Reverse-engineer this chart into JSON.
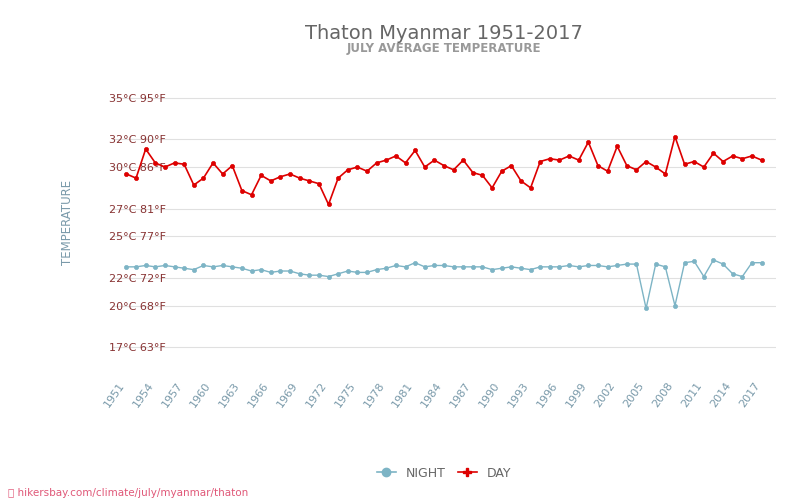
{
  "title": "Thaton Myanmar 1951-2017",
  "subtitle": "JULY AVERAGE TEMPERATURE",
  "ylabel": "TEMPERATURE",
  "xlabel_url": "hikersbay.com/climate/july/myanmar/thaton",
  "years": [
    1951,
    1952,
    1953,
    1954,
    1955,
    1956,
    1957,
    1958,
    1959,
    1960,
    1961,
    1962,
    1963,
    1964,
    1965,
    1966,
    1967,
    1968,
    1969,
    1970,
    1971,
    1972,
    1973,
    1974,
    1975,
    1976,
    1977,
    1978,
    1979,
    1980,
    1981,
    1982,
    1983,
    1984,
    1985,
    1986,
    1987,
    1988,
    1989,
    1990,
    1991,
    1992,
    1993,
    1994,
    1995,
    1996,
    1997,
    1998,
    1999,
    2000,
    2001,
    2002,
    2003,
    2004,
    2005,
    2006,
    2007,
    2008,
    2009,
    2010,
    2011,
    2012,
    2013,
    2014,
    2015,
    2016,
    2017
  ],
  "day_temps": [
    29.5,
    29.2,
    31.3,
    30.3,
    30.0,
    30.3,
    30.2,
    28.7,
    29.2,
    30.3,
    29.5,
    30.1,
    28.3,
    28.0,
    29.4,
    29.0,
    29.3,
    29.5,
    29.2,
    29.0,
    28.8,
    27.3,
    29.2,
    29.8,
    30.0,
    29.7,
    30.3,
    30.5,
    30.8,
    30.3,
    31.2,
    30.0,
    30.5,
    30.1,
    29.8,
    30.5,
    29.6,
    29.4,
    28.5,
    29.7,
    30.1,
    29.0,
    28.5,
    30.4,
    30.6,
    30.5,
    30.8,
    30.5,
    31.8,
    30.1,
    29.7,
    31.5,
    30.1,
    29.8,
    30.4,
    30.0,
    29.5,
    32.2,
    30.2,
    30.4,
    30.0,
    31.0,
    30.4,
    30.8,
    30.6,
    30.8,
    30.5
  ],
  "night_temps": [
    22.8,
    22.8,
    22.9,
    22.8,
    22.9,
    22.8,
    22.7,
    22.6,
    22.9,
    22.8,
    22.9,
    22.8,
    22.7,
    22.5,
    22.6,
    22.4,
    22.5,
    22.5,
    22.3,
    22.2,
    22.2,
    22.1,
    22.3,
    22.5,
    22.4,
    22.4,
    22.6,
    22.7,
    22.9,
    22.8,
    23.1,
    22.8,
    22.9,
    22.9,
    22.8,
    22.8,
    22.8,
    22.8,
    22.6,
    22.7,
    22.8,
    22.7,
    22.6,
    22.8,
    22.8,
    22.8,
    22.9,
    22.8,
    22.9,
    22.9,
    22.8,
    22.9,
    23.0,
    23.0,
    19.8,
    23.0,
    22.8,
    20.0,
    23.1,
    23.2,
    22.1,
    23.3,
    23.0,
    22.3,
    22.1,
    23.1,
    23.1
  ],
  "day_color": "#dd0000",
  "night_color": "#7db4c5",
  "title_color": "#666666",
  "subtitle_color": "#999999",
  "ylabel_color": "#7a9aaa",
  "tick_label_color": "#883333",
  "xtick_label_color": "#7a9aaa",
  "grid_color": "#e0e0e0",
  "bg_color": "#ffffff",
  "yticks_c": [
    17,
    20,
    22,
    25,
    27,
    30,
    32,
    35
  ],
  "yticks_f": [
    63,
    68,
    72,
    77,
    81,
    86,
    90,
    95
  ],
  "xtick_years": [
    1951,
    1954,
    1957,
    1960,
    1963,
    1966,
    1969,
    1972,
    1975,
    1978,
    1981,
    1984,
    1987,
    1990,
    1993,
    1996,
    1999,
    2002,
    2005,
    2008,
    2011,
    2014,
    2017
  ],
  "legend_night_label": "NIGHT",
  "legend_day_label": "DAY",
  "ylim_min": 15,
  "ylim_max": 37,
  "xlim_min": 1949.5,
  "xlim_max": 2018.5
}
